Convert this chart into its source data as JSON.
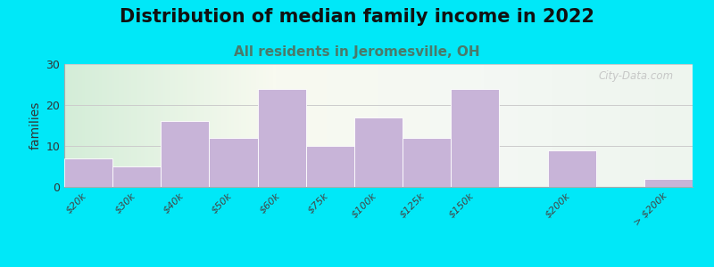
{
  "title": "Distribution of median family income in 2022",
  "subtitle": "All residents in Jeromesville, OH",
  "ylabel": "families",
  "categories": [
    "$20k",
    "$30k",
    "$40k",
    "$50k",
    "$60k",
    "$75k",
    "$100k",
    "$125k",
    "$150k",
    "$200k",
    "> $200k"
  ],
  "values": [
    7,
    5,
    16,
    12,
    24,
    10,
    17,
    12,
    24,
    9,
    2
  ],
  "bar_positions": [
    0,
    1,
    2,
    3,
    4,
    5,
    6,
    7,
    8,
    10,
    12
  ],
  "bar_color": "#c8b4d8",
  "bar_edge_color": "#ffffff",
  "background_outer": "#00e8f8",
  "ylim": [
    0,
    30
  ],
  "yticks": [
    0,
    10,
    20,
    30
  ],
  "title_fontsize": 15,
  "subtitle_fontsize": 11,
  "subtitle_color": "#4a7a6a",
  "ylabel_fontsize": 10,
  "tick_label_fontsize": 8,
  "watermark": "City-Data.com"
}
